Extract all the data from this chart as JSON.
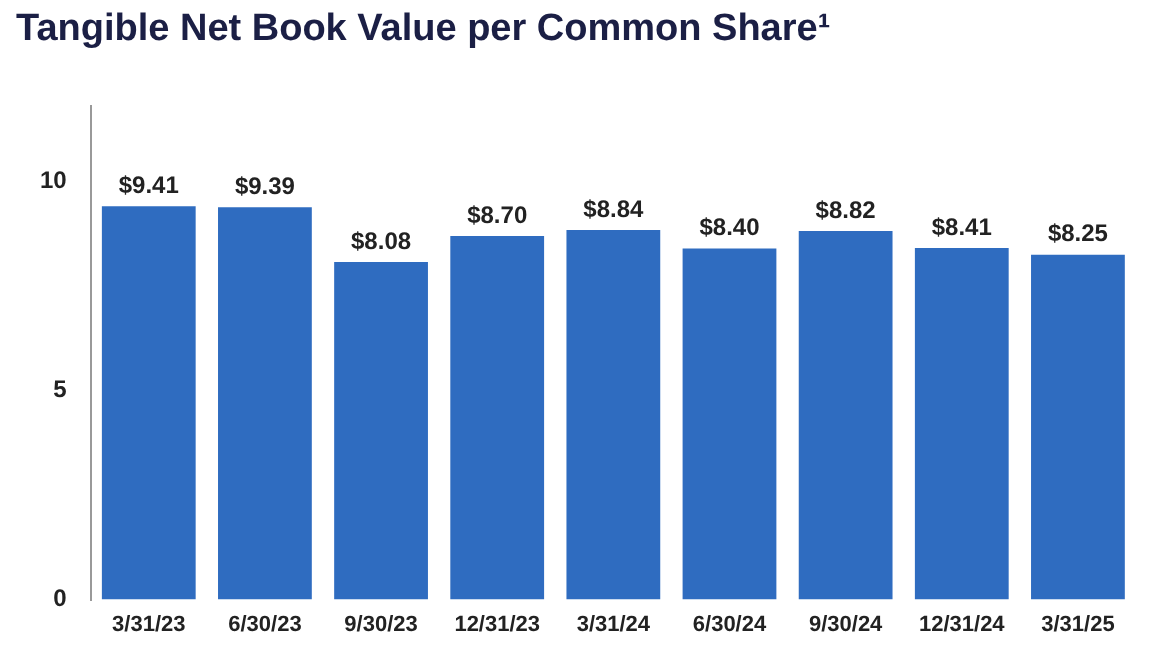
{
  "chart_data": {
    "type": "bar",
    "title": "Tangible Net Book Value per Common Share¹",
    "categories": [
      "3/31/23",
      "6/30/23",
      "9/30/23",
      "12/31/23",
      "3/31/24",
      "6/30/24",
      "9/30/24",
      "12/31/24",
      "3/31/25"
    ],
    "values": [
      9.41,
      9.39,
      8.08,
      8.7,
      8.84,
      8.4,
      8.82,
      8.41,
      8.25
    ],
    "value_labels": [
      "$9.41",
      "$9.39",
      "$8.08",
      "$8.70",
      "$8.84",
      "$8.40",
      "$8.82",
      "$8.41",
      "$8.25"
    ],
    "color": "#2f6cc0",
    "ylim": [
      0,
      11.8
    ],
    "yticks": [
      0,
      5,
      10
    ],
    "grid": false,
    "legend": false
  }
}
